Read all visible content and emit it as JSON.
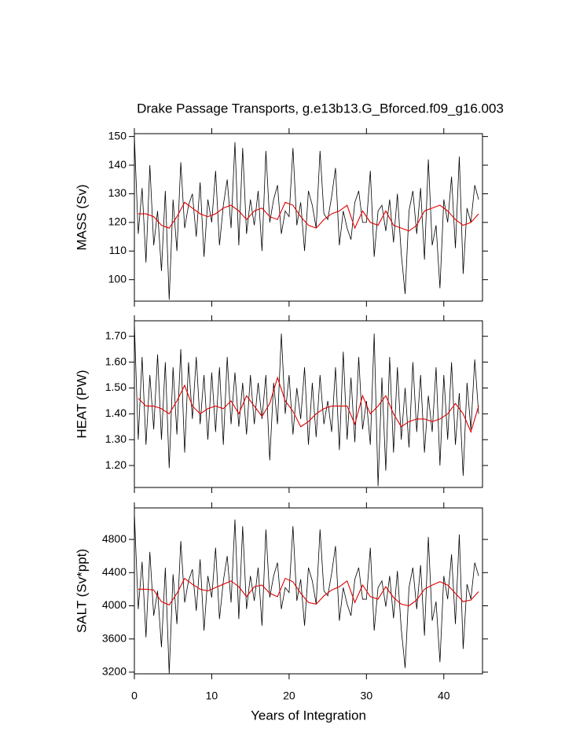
{
  "chart_data": [
    {
      "type": "line",
      "title": "Drake Passage Transports, g.e13b13.G_Bforced.f09_g16.003",
      "ylabel": "MASS (Sv)",
      "xlim": [
        0,
        45
      ],
      "xticks": [
        0,
        10,
        20,
        30,
        40
      ],
      "ylim": [
        92.5,
        151
      ],
      "yticks": [
        100,
        110,
        120,
        130,
        140,
        150
      ],
      "series": [
        {
          "color": "#000000",
          "x": [
            0,
            0.5,
            1,
            1.5,
            2,
            2.5,
            3,
            3.5,
            4,
            4.5,
            5,
            5.5,
            6,
            6.5,
            7,
            7.5,
            8,
            8.5,
            9,
            9.5,
            10,
            10.5,
            11,
            11.5,
            12,
            12.5,
            13,
            13.5,
            14,
            14.5,
            15,
            15.5,
            16,
            16.5,
            17,
            17.5,
            18,
            18.5,
            19,
            19.5,
            20,
            20.5,
            21,
            21.5,
            22,
            22.5,
            23,
            23.5,
            24,
            24.5,
            25,
            25.5,
            26,
            26.5,
            27,
            27.5,
            28,
            28.5,
            29,
            29.5,
            30,
            30.5,
            31,
            31.5,
            32,
            32.5,
            33,
            33.5,
            34,
            34.5,
            35,
            35.5,
            36,
            36.5,
            37,
            37.5,
            38,
            38.5,
            39,
            39.5,
            40,
            40.5,
            41,
            41.5,
            42,
            42.5,
            43,
            43.5,
            44,
            44.5
          ],
          "values": [
            150,
            116,
            132,
            106,
            140,
            112,
            124,
            103,
            131,
            93,
            128,
            110,
            141,
            118,
            126,
            130,
            115,
            134,
            108,
            128,
            120,
            138,
            112,
            126,
            135,
            118,
            148,
            112,
            146,
            116,
            128,
            119,
            131,
            110,
            145,
            120,
            128,
            133,
            116,
            124,
            122,
            146,
            119,
            127,
            110,
            131,
            126,
            118,
            145,
            123,
            121,
            129,
            139,
            112,
            124,
            118,
            114,
            127,
            131,
            120,
            120,
            138,
            108,
            124,
            126,
            117,
            128,
            113,
            130,
            109,
            95,
            124,
            131,
            116,
            132,
            107,
            142,
            112,
            119,
            97,
            128,
            120,
            136,
            111,
            143,
            102,
            125,
            120,
            133,
            128
          ]
        },
        {
          "color": "#e00000",
          "x": [
            0.5,
            1.5,
            2.5,
            3.5,
            4.5,
            5.5,
            6.5,
            7.5,
            8.5,
            9.5,
            10.5,
            11.5,
            12.5,
            13.5,
            14.5,
            15.5,
            16.5,
            17.5,
            18.5,
            19.5,
            20.5,
            21.5,
            22.5,
            23.5,
            24.5,
            25.5,
            26.5,
            27.5,
            28.5,
            29.5,
            30.5,
            31.5,
            32.5,
            33.5,
            34.5,
            35.5,
            36.5,
            37.5,
            38.5,
            39.5,
            40.5,
            41.5,
            42.5,
            43.5,
            44.5
          ],
          "values": [
            123,
            123,
            122,
            119,
            118,
            122,
            127,
            125,
            123,
            122,
            123,
            125,
            126,
            124,
            121,
            124,
            125,
            122,
            121,
            127,
            126,
            122,
            119,
            118,
            121,
            123,
            124,
            126,
            118,
            124,
            120,
            119,
            124,
            119,
            118,
            117,
            119,
            124,
            125,
            126,
            124,
            121,
            119,
            120,
            123
          ]
        }
      ]
    },
    {
      "type": "line",
      "ylabel": "HEAT (PW)",
      "xlim": [
        0,
        45
      ],
      "xticks": [
        0,
        10,
        20,
        30,
        40
      ],
      "ylim": [
        1.115,
        1.76
      ],
      "yticks": [
        {
          "value": 1.2,
          "label": "1.20"
        },
        {
          "value": 1.3,
          "label": "1.30"
        },
        {
          "value": 1.4,
          "label": "1.40"
        },
        {
          "value": 1.5,
          "label": "1.50"
        },
        {
          "value": 1.6,
          "label": "1.60"
        },
        {
          "value": 1.7,
          "label": "1.70"
        }
      ],
      "series": [
        {
          "color": "#000000",
          "x": [
            0,
            0.5,
            1,
            1.5,
            2,
            2.5,
            3,
            3.5,
            4,
            4.5,
            5,
            5.5,
            6,
            6.5,
            7,
            7.5,
            8,
            8.5,
            9,
            9.5,
            10,
            10.5,
            11,
            11.5,
            12,
            12.5,
            13,
            13.5,
            14,
            14.5,
            15,
            15.5,
            16,
            16.5,
            17,
            17.5,
            18,
            18.5,
            19,
            19.5,
            20,
            20.5,
            21,
            21.5,
            22,
            22.5,
            23,
            23.5,
            24,
            24.5,
            25,
            25.5,
            26,
            26.5,
            27,
            27.5,
            28,
            28.5,
            29,
            29.5,
            30,
            30.5,
            31,
            31.5,
            32,
            32.5,
            33,
            33.5,
            34,
            34.5,
            35,
            35.5,
            36,
            36.5,
            37,
            37.5,
            38,
            38.5,
            39,
            39.5,
            40,
            40.5,
            41,
            41.5,
            42,
            42.5,
            43,
            43.5,
            44,
            44.5
          ],
          "values": [
            1.75,
            1.3,
            1.62,
            1.28,
            1.55,
            1.34,
            1.63,
            1.3,
            1.6,
            1.19,
            1.58,
            1.32,
            1.65,
            1.25,
            1.6,
            1.38,
            1.62,
            1.36,
            1.55,
            1.3,
            1.56,
            1.33,
            1.58,
            1.28,
            1.62,
            1.36,
            1.56,
            1.35,
            1.52,
            1.32,
            1.55,
            1.36,
            1.52,
            1.38,
            1.55,
            1.22,
            1.52,
            1.36,
            1.71,
            1.4,
            1.55,
            1.32,
            1.5,
            1.38,
            1.58,
            1.28,
            1.52,
            1.31,
            1.55,
            1.36,
            1.45,
            1.33,
            1.58,
            1.26,
            1.64,
            1.3,
            1.54,
            1.29,
            1.62,
            1.34,
            1.45,
            1.28,
            1.71,
            1.12,
            1.54,
            1.18,
            1.62,
            1.25,
            1.58,
            1.3,
            1.5,
            1.27,
            1.6,
            1.33,
            1.55,
            1.25,
            1.47,
            1.33,
            1.58,
            1.2,
            1.55,
            1.3,
            1.6,
            1.28,
            1.48,
            1.16,
            1.52,
            1.34,
            1.61,
            1.4
          ]
        },
        {
          "color": "#e00000",
          "x": [
            0.5,
            1.5,
            2.5,
            3.5,
            4.5,
            5.5,
            6.5,
            7.5,
            8.5,
            9.5,
            10.5,
            11.5,
            12.5,
            13.5,
            14.5,
            15.5,
            16.5,
            17.5,
            18.5,
            19.5,
            20.5,
            21.5,
            22.5,
            23.5,
            24.5,
            25.5,
            26.5,
            27.5,
            28.5,
            29.5,
            30.5,
            31.5,
            32.5,
            33.5,
            34.5,
            35.5,
            36.5,
            37.5,
            38.5,
            39.5,
            40.5,
            41.5,
            42.5,
            43.5,
            44.5
          ],
          "values": [
            1.46,
            1.43,
            1.43,
            1.42,
            1.4,
            1.45,
            1.51,
            1.43,
            1.4,
            1.42,
            1.43,
            1.42,
            1.45,
            1.4,
            1.47,
            1.43,
            1.39,
            1.44,
            1.54,
            1.45,
            1.41,
            1.35,
            1.37,
            1.4,
            1.42,
            1.43,
            1.43,
            1.43,
            1.36,
            1.47,
            1.4,
            1.43,
            1.47,
            1.4,
            1.35,
            1.37,
            1.38,
            1.38,
            1.37,
            1.38,
            1.4,
            1.44,
            1.4,
            1.33,
            1.43
          ]
        }
      ]
    },
    {
      "type": "line",
      "ylabel": "SALT (Sv*ppt)",
      "xlabel": "Years of Integration",
      "xlim": [
        0,
        45
      ],
      "xticks": [
        0,
        10,
        20,
        30,
        40
      ],
      "ylim": [
        3180,
        5180
      ],
      "yticks": [
        3200,
        3600,
        4000,
        4400,
        4800
      ],
      "series": [
        {
          "color": "#000000",
          "x": [
            0,
            0.5,
            1,
            1.5,
            2,
            2.5,
            3,
            3.5,
            4,
            4.5,
            5,
            5.5,
            6,
            6.5,
            7,
            7.5,
            8,
            8.5,
            9,
            9.5,
            10,
            10.5,
            11,
            11.5,
            12,
            12.5,
            13,
            13.5,
            14,
            14.5,
            15,
            15.5,
            16,
            16.5,
            17,
            17.5,
            18,
            18.5,
            19,
            19.5,
            20,
            20.5,
            21,
            21.5,
            22,
            22.5,
            23,
            23.5,
            24,
            24.5,
            25,
            25.5,
            26,
            26.5,
            27,
            27.5,
            28,
            28.5,
            29,
            29.5,
            30,
            30.5,
            31,
            31.5,
            32,
            32.5,
            33,
            33.5,
            34,
            34.5,
            35,
            35.5,
            36,
            36.5,
            37,
            37.5,
            38,
            38.5,
            39,
            39.5,
            40,
            40.5,
            41,
            41.5,
            42,
            42.5,
            43,
            43.5,
            44,
            44.5
          ],
          "values": [
            5120,
            3960,
            4530,
            3620,
            4650,
            3880,
            4180,
            3500,
            4460,
            3180,
            4380,
            3780,
            4780,
            4040,
            4300,
            4440,
            3940,
            4560,
            3700,
            4360,
            4100,
            4700,
            3840,
            4300,
            4600,
            4040,
            5040,
            3840,
            4960,
            3960,
            4360,
            4060,
            4460,
            3760,
            4920,
            4100,
            4360,
            4520,
            3960,
            4220,
            4160,
            4960,
            4060,
            4320,
            3760,
            4460,
            4300,
            4020,
            4920,
            4180,
            4120,
            4390,
            4720,
            3820,
            4220,
            4020,
            3880,
            4320,
            4460,
            4080,
            4080,
            4700,
            3700,
            4220,
            4300,
            3990,
            4360,
            3850,
            4420,
            3720,
            3250,
            4220,
            4460,
            3960,
            4490,
            3640,
            4830,
            3820,
            4050,
            3320,
            4360,
            4080,
            4620,
            3780,
            4860,
            3480,
            4260,
            4080,
            4520,
            4360
          ]
        },
        {
          "color": "#e00000",
          "x": [
            0.5,
            1.5,
            2.5,
            3.5,
            4.5,
            5.5,
            6.5,
            7.5,
            8.5,
            9.5,
            10.5,
            11.5,
            12.5,
            13.5,
            14.5,
            15.5,
            16.5,
            17.5,
            18.5,
            19.5,
            20.5,
            21.5,
            22.5,
            23.5,
            24.5,
            25.5,
            26.5,
            27.5,
            28.5,
            29.5,
            30.5,
            31.5,
            32.5,
            33.5,
            34.5,
            35.5,
            36.5,
            37.5,
            38.5,
            39.5,
            40.5,
            41.5,
            42.5,
            43.5,
            44.5
          ],
          "values": [
            4200,
            4200,
            4190,
            4050,
            4010,
            4150,
            4330,
            4260,
            4200,
            4180,
            4220,
            4260,
            4300,
            4230,
            4110,
            4230,
            4250,
            4150,
            4110,
            4330,
            4290,
            4150,
            4040,
            4020,
            4120,
            4190,
            4230,
            4300,
            4040,
            4250,
            4110,
            4080,
            4230,
            4100,
            4020,
            4000,
            4070,
            4200,
            4250,
            4290,
            4250,
            4150,
            4050,
            4070,
            4170
          ]
        }
      ]
    }
  ]
}
